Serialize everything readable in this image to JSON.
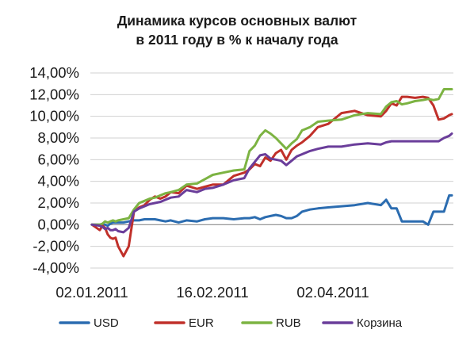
{
  "chart_data": {
    "type": "line",
    "title": "Динамика курсов основных валют в 2011 году в % к началу года",
    "title_lines": [
      "Динамика курсов основных валют",
      "в 2011 году в % к началу года"
    ],
    "xlabel": "",
    "ylabel": "",
    "x_tick_labels": [
      "02.01.2011",
      "16.02.2011",
      "02.04.2011"
    ],
    "y_ticks": [
      -4,
      -2,
      0,
      2,
      4,
      6,
      8,
      10,
      12,
      14
    ],
    "y_tick_labels": [
      "-4,00%",
      "-2,00%",
      "0,00%",
      "2,00%",
      "4,00%",
      "6,00%",
      "8,00%",
      "10,00%",
      "12,00%",
      "14,00%"
    ],
    "ylim": [
      -4,
      14
    ],
    "grid": true,
    "legend_position": "bottom",
    "x_days": [
      0,
      3,
      4,
      5,
      6,
      7,
      8,
      9,
      10,
      12,
      14,
      16,
      18,
      20,
      22,
      24,
      26,
      28,
      30,
      33,
      36,
      40,
      43,
      46,
      50,
      54,
      58,
      60,
      62,
      64,
      66,
      68,
      70,
      72,
      74,
      76,
      78,
      80,
      83,
      86,
      90,
      95,
      100,
      105,
      110,
      112,
      114,
      116,
      118,
      120,
      123,
      126,
      128,
      130,
      132,
      134,
      136,
      137
    ],
    "series": [
      {
        "name": "USD",
        "color": "#2b6cb0",
        "values": [
          0,
          0,
          0,
          0,
          -0.1,
          0.1,
          0.2,
          0.2,
          0.2,
          0.2,
          0.3,
          0.4,
          0.4,
          0.5,
          0.5,
          0.5,
          0.4,
          0.3,
          0.4,
          0.2,
          0.4,
          0.3,
          0.5,
          0.6,
          0.6,
          0.5,
          0.6,
          0.6,
          0.7,
          0.5,
          0.7,
          0.8,
          0.9,
          0.8,
          0.6,
          0.6,
          0.8,
          1.2,
          1.4,
          1.5,
          1.6,
          1.7,
          1.8,
          2.0,
          1.8,
          2.3,
          1.5,
          1.5,
          0.3,
          0.3,
          0.3,
          0.3,
          0.0,
          1.2,
          1.2,
          1.2,
          2.7,
          2.7
        ]
      },
      {
        "name": "EUR",
        "color": "#c0302a",
        "values": [
          0,
          -0.5,
          -0.1,
          -0.3,
          -0.9,
          -1.2,
          -1.3,
          -1.2,
          -2.0,
          -2.9,
          -2.0,
          1.2,
          1.6,
          1.8,
          2.3,
          2.6,
          2.4,
          2.6,
          3.0,
          2.9,
          3.6,
          3.3,
          3.5,
          3.7,
          3.7,
          4.5,
          4.8,
          5.1,
          5.6,
          5.4,
          6.2,
          5.9,
          6.6,
          6.9,
          6.0,
          6.9,
          7.3,
          7.6,
          8.2,
          9.0,
          9.3,
          10.3,
          10.5,
          10.1,
          10.0,
          10.5,
          11.2,
          11.0,
          11.8,
          11.8,
          11.7,
          11.8,
          11.7,
          11.0,
          9.7,
          9.8,
          10.1,
          10.2
        ]
      },
      {
        "name": "RUB",
        "color": "#7cb342",
        "values": [
          0,
          0,
          0.1,
          0.3,
          0.2,
          0.3,
          0.4,
          0.3,
          0.4,
          0.5,
          0.6,
          1.4,
          2.0,
          2.2,
          2.4,
          2.5,
          2.7,
          2.9,
          3.0,
          3.2,
          3.7,
          3.8,
          4.2,
          4.6,
          4.8,
          5.0,
          5.1,
          6.8,
          7.3,
          8.2,
          8.7,
          8.4,
          8.0,
          7.5,
          7.0,
          7.5,
          7.9,
          8.7,
          9.0,
          9.5,
          9.6,
          9.7,
          10.1,
          10.3,
          10.2,
          10.9,
          11.3,
          11.4,
          11.1,
          11.2,
          11.4,
          11.5,
          11.6,
          11.5,
          11.6,
          12.5,
          12.5,
          12.5
        ]
      },
      {
        "name": "Корзина",
        "color": "#6a3d9a",
        "values": [
          0,
          -0.1,
          -0.2,
          -0.4,
          -0.3,
          -0.5,
          -0.5,
          -0.4,
          -0.6,
          -0.7,
          -0.3,
          1.2,
          1.5,
          1.7,
          1.9,
          2.0,
          2.1,
          2.3,
          2.5,
          2.6,
          3.2,
          3.0,
          3.3,
          3.4,
          3.7,
          4.1,
          4.3,
          5.2,
          5.8,
          6.4,
          6.5,
          6.1,
          6.0,
          5.9,
          5.5,
          5.9,
          6.3,
          6.5,
          6.8,
          7.0,
          7.2,
          7.2,
          7.4,
          7.5,
          7.4,
          7.6,
          7.7,
          7.7,
          7.7,
          7.7,
          7.7,
          7.7,
          7.7,
          7.7,
          7.7,
          8.0,
          8.2,
          8.4
        ]
      }
    ]
  }
}
